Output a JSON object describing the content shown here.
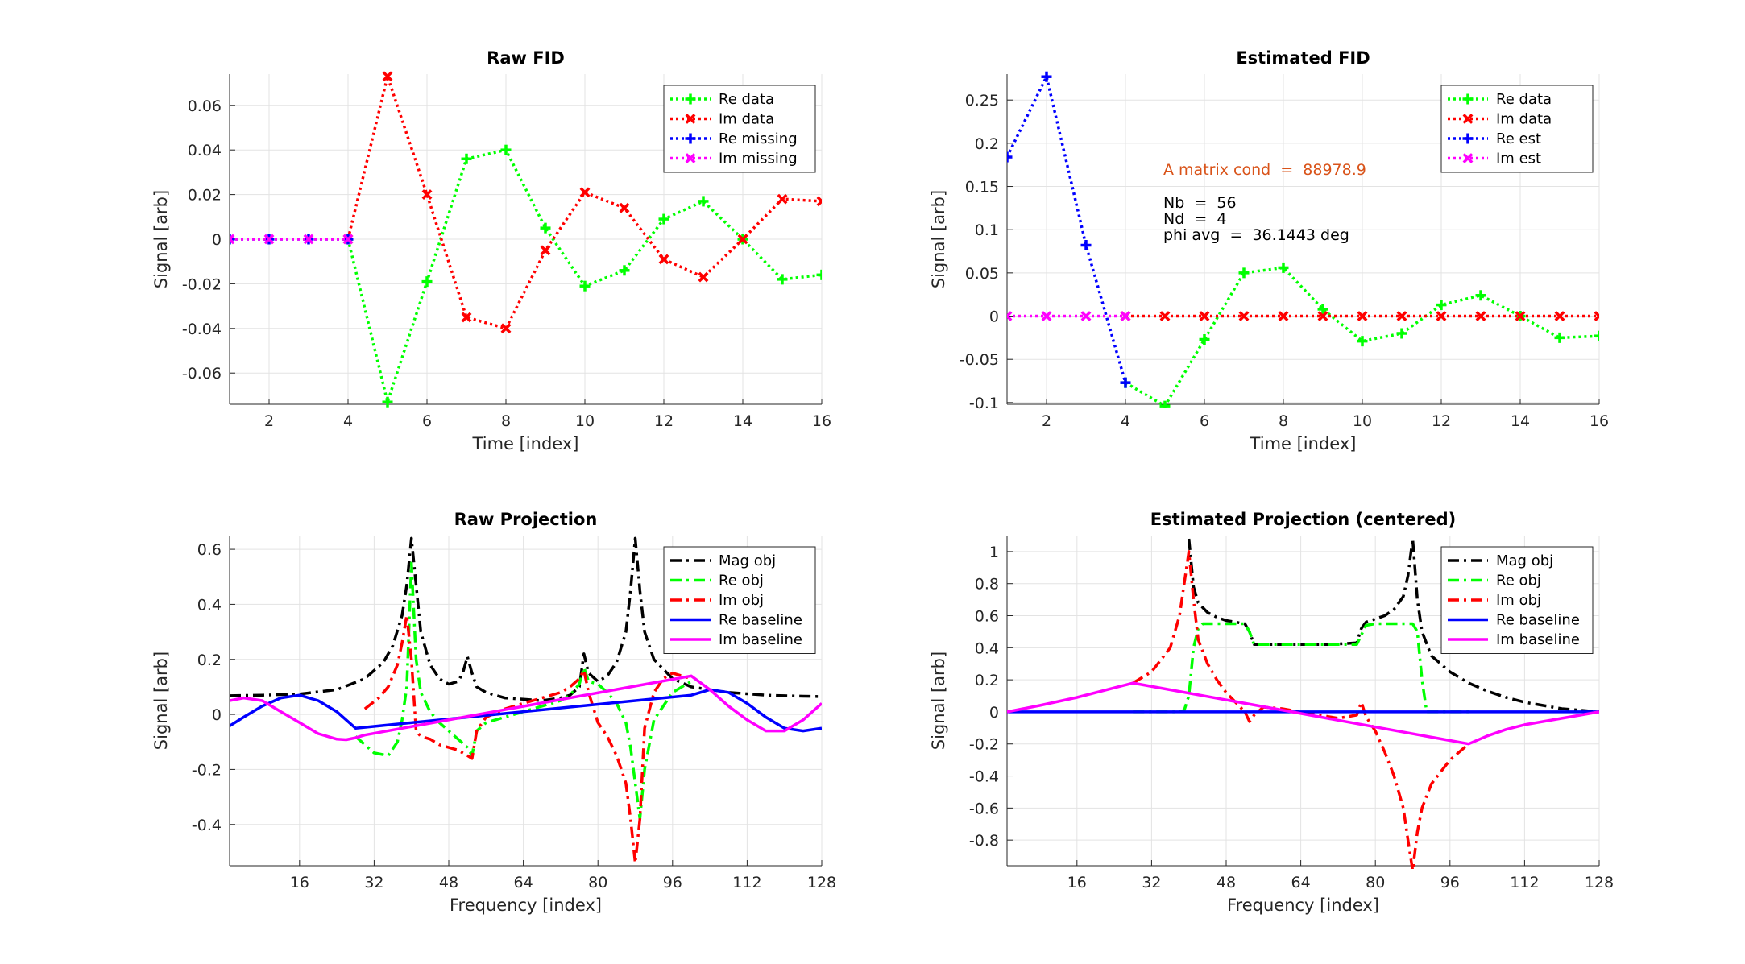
{
  "chart_data": [
    {
      "id": "raw-fid",
      "type": "line",
      "title": "Raw FID",
      "xlabel": "Time [index]",
      "ylabel": "Signal [arb]",
      "xlim": [
        1,
        16
      ],
      "ylim": [
        -0.074,
        0.074
      ],
      "xticks": [
        2,
        4,
        6,
        8,
        10,
        12,
        14,
        16
      ],
      "xtick_labels": [
        "2",
        "4",
        "6",
        "8",
        "10",
        "12",
        "14",
        "16"
      ],
      "yticks": [
        -0.06,
        -0.04,
        -0.02,
        0,
        0.02,
        0.04,
        0.06
      ],
      "ytick_labels": [
        "-0.06",
        "-0.04",
        "-0.02",
        "0",
        "0.02",
        "0.04",
        "0.06"
      ],
      "grid": true,
      "legend_position": "top-right",
      "series": [
        {
          "name": "Re data",
          "color": "#00ff00",
          "style": "dotted",
          "marker": "plus",
          "x": [
            4,
            5,
            6,
            7,
            8,
            9,
            10,
            11,
            12,
            13,
            14,
            15,
            16
          ],
          "y": [
            0,
            -0.073,
            -0.019,
            0.036,
            0.04,
            0.005,
            -0.021,
            -0.014,
            0.009,
            0.017,
            0,
            -0.018,
            -0.016
          ]
        },
        {
          "name": "Im data",
          "color": "#ff0000",
          "style": "dotted",
          "marker": "x",
          "x": [
            4,
            5,
            6,
            7,
            8,
            9,
            10,
            11,
            12,
            13,
            14,
            15,
            16
          ],
          "y": [
            0,
            0.073,
            0.02,
            -0.035,
            -0.04,
            -0.005,
            0.021,
            0.014,
            -0.009,
            -0.017,
            0,
            0.018,
            0.017
          ]
        },
        {
          "name": "Re missing",
          "color": "#0000ff",
          "style": "dotted",
          "marker": "plus",
          "x": [
            1,
            2,
            3,
            4
          ],
          "y": [
            0,
            0,
            0,
            0
          ]
        },
        {
          "name": "Im missing",
          "color": "#ff00ff",
          "style": "dotted",
          "marker": "x",
          "x": [
            1,
            2,
            3,
            4
          ],
          "y": [
            0,
            0,
            0,
            0
          ]
        }
      ]
    },
    {
      "id": "estimated-fid",
      "type": "line",
      "title": "Estimated FID",
      "xlabel": "Time [index]",
      "ylabel": "Signal [arb]",
      "xlim": [
        1,
        16
      ],
      "ylim": [
        -0.102,
        0.28
      ],
      "xticks": [
        2,
        4,
        6,
        8,
        10,
        12,
        14,
        16
      ],
      "xtick_labels": [
        "2",
        "4",
        "6",
        "8",
        "10",
        "12",
        "14",
        "16"
      ],
      "yticks": [
        -0.1,
        -0.05,
        0,
        0.05,
        0.1,
        0.15,
        0.2,
        0.25
      ],
      "ytick_labels": [
        "-0.1",
        "-0.05",
        "0",
        "0.05",
        "0.1",
        "0.15",
        "0.2",
        "0.25"
      ],
      "grid": true,
      "legend_position": "top-right",
      "annotations": [
        {
          "text": "A matrix cond  =  88978.9",
          "color": "#d95319"
        },
        {
          "text": "Nb  =  56",
          "color": "#000000"
        },
        {
          "text": "Nd  =  4",
          "color": "#000000"
        },
        {
          "text": "phi avg  =  36.1443 deg",
          "color": "#000000"
        }
      ],
      "series": [
        {
          "name": "Re data",
          "color": "#00ff00",
          "style": "dotted",
          "marker": "plus",
          "x": [
            4,
            5,
            6,
            7,
            8,
            9,
            10,
            11,
            12,
            13,
            14,
            15,
            16
          ],
          "y": [
            -0.077,
            -0.104,
            -0.027,
            0.05,
            0.056,
            0.008,
            -0.029,
            -0.02,
            0.013,
            0.024,
            0,
            -0.025,
            -0.023
          ]
        },
        {
          "name": "Im data",
          "color": "#ff0000",
          "style": "dotted",
          "marker": "x",
          "x": [
            4,
            5,
            6,
            7,
            8,
            9,
            10,
            11,
            12,
            13,
            14,
            15,
            16
          ],
          "y": [
            0,
            0,
            0,
            0,
            0,
            0,
            0,
            0,
            0,
            0,
            0,
            0,
            0
          ]
        },
        {
          "name": "Re est",
          "color": "#0000ff",
          "style": "dotted",
          "marker": "plus",
          "x": [
            1,
            2,
            3,
            4
          ],
          "y": [
            0.184,
            0.277,
            0.082,
            -0.077
          ]
        },
        {
          "name": "Im est",
          "color": "#ff00ff",
          "style": "dotted",
          "marker": "x",
          "x": [
            1,
            2,
            3,
            4
          ],
          "y": [
            0,
            0,
            0,
            0
          ]
        }
      ]
    },
    {
      "id": "raw-projection",
      "type": "line",
      "title": "Raw Projection",
      "xlabel": "Frequency [index]",
      "ylabel": "Signal [arb]",
      "xlim": [
        1,
        128
      ],
      "ylim": [
        -0.55,
        0.65
      ],
      "xticks": [
        16,
        32,
        48,
        64,
        80,
        96,
        112,
        128
      ],
      "xtick_labels": [
        "16",
        "32",
        "48",
        "64",
        "80",
        "96",
        "112",
        "128"
      ],
      "yticks": [
        -0.4,
        -0.2,
        0,
        0.2,
        0.4,
        0.6
      ],
      "ytick_labels": [
        "-0.4",
        "-0.2",
        "0",
        "0.2",
        "0.4",
        "0.6"
      ],
      "grid": true,
      "legend_position": "top-right",
      "series": [
        {
          "name": "Mag obj",
          "color": "#000000",
          "style": "dashdot",
          "x": [
            1,
            8,
            16,
            24,
            30,
            34,
            36,
            38,
            39,
            40,
            41,
            42,
            44,
            46,
            48,
            50,
            51,
            52,
            53,
            54,
            56,
            60,
            64,
            68,
            72,
            74,
            76,
            77,
            78,
            80,
            82,
            84,
            86,
            87,
            88,
            89,
            90,
            92,
            96,
            100,
            104,
            108,
            112,
            116,
            120,
            124,
            128
          ],
          "y": [
            0.068,
            0.07,
            0.074,
            0.09,
            0.13,
            0.19,
            0.25,
            0.36,
            0.47,
            0.64,
            0.47,
            0.3,
            0.18,
            0.13,
            0.11,
            0.12,
            0.15,
            0.21,
            0.15,
            0.1,
            0.08,
            0.06,
            0.055,
            0.05,
            0.06,
            0.07,
            0.1,
            0.22,
            0.15,
            0.12,
            0.14,
            0.19,
            0.3,
            0.45,
            0.64,
            0.45,
            0.3,
            0.2,
            0.13,
            0.1,
            0.09,
            0.08,
            0.075,
            0.07,
            0.068,
            0.066,
            0.065
          ]
        },
        {
          "name": "Re obj",
          "color": "#00ff00",
          "style": "dashdot",
          "x": [
            28,
            30,
            32,
            35,
            37,
            38,
            39,
            40,
            41,
            42,
            44,
            46,
            48,
            50,
            52,
            53,
            54,
            56,
            60,
            64,
            68,
            72,
            74,
            76,
            77,
            78,
            80,
            82,
            84,
            86,
            87,
            88,
            89,
            90,
            92,
            96,
            100
          ],
          "y": [
            -0.08,
            -0.11,
            -0.14,
            -0.15,
            -0.1,
            -0.02,
            0.1,
            0.55,
            0.2,
            0.08,
            0.01,
            -0.03,
            -0.06,
            -0.09,
            -0.12,
            -0.15,
            -0.06,
            -0.03,
            -0.01,
            0.01,
            0.03,
            0.05,
            0.07,
            0.11,
            0.17,
            0.12,
            0.11,
            0.08,
            0.04,
            -0.03,
            -0.12,
            -0.25,
            -0.38,
            -0.2,
            -0.02,
            0.08,
            0.12
          ]
        },
        {
          "name": "Im obj",
          "color": "#ff0000",
          "style": "dashdot",
          "x": [
            30,
            33,
            35,
            37,
            38,
            39,
            40,
            41,
            42,
            44,
            46,
            48,
            50,
            52,
            53,
            54,
            56,
            60,
            64,
            68,
            72,
            74,
            76,
            77,
            78,
            80,
            82,
            84,
            86,
            87,
            88,
            89,
            90,
            92,
            94,
            96,
            100
          ],
          "y": [
            0.02,
            0.06,
            0.1,
            0.18,
            0.26,
            0.36,
            0.2,
            -0.06,
            -0.08,
            -0.09,
            -0.11,
            -0.12,
            -0.13,
            -0.15,
            -0.16,
            -0.06,
            -0.01,
            0.02,
            0.04,
            0.06,
            0.08,
            0.1,
            0.13,
            0.16,
            0.08,
            -0.03,
            -0.08,
            -0.15,
            -0.25,
            -0.38,
            -0.54,
            -0.38,
            -0.05,
            0.08,
            0.13,
            0.15,
            0.13
          ]
        },
        {
          "name": "Re baseline",
          "color": "#0000ff",
          "style": "solid",
          "x": [
            1,
            4,
            8,
            12,
            16,
            20,
            24,
            28,
            100,
            104,
            108,
            112,
            116,
            120,
            124,
            128
          ],
          "y": [
            -0.042,
            -0.01,
            0.03,
            0.06,
            0.07,
            0.05,
            0.01,
            -0.05,
            0.07,
            0.09,
            0.08,
            0.04,
            -0.01,
            -0.05,
            -0.06,
            -0.05
          ]
        },
        {
          "name": "Im baseline",
          "color": "#ff00ff",
          "style": "solid",
          "x": [
            1,
            4,
            8,
            12,
            16,
            20,
            24,
            26,
            28,
            30,
            100,
            104,
            108,
            112,
            116,
            120,
            124,
            128
          ],
          "y": [
            0.05,
            0.06,
            0.05,
            0.01,
            -0.03,
            -0.07,
            -0.09,
            -0.092,
            -0.085,
            -0.075,
            0.14,
            0.09,
            0.03,
            -0.02,
            -0.06,
            -0.06,
            -0.02,
            0.04
          ]
        }
      ]
    },
    {
      "id": "estimated-projection",
      "type": "line",
      "title": "Estimated Projection (centered)",
      "xlabel": "Frequency [index]",
      "ylabel": "Signal [arb]",
      "xlim": [
        1,
        128
      ],
      "ylim": [
        -0.96,
        1.1
      ],
      "xticks": [
        16,
        32,
        48,
        64,
        80,
        96,
        112,
        128
      ],
      "xtick_labels": [
        "16",
        "32",
        "48",
        "64",
        "80",
        "96",
        "112",
        "128"
      ],
      "yticks": [
        -0.8,
        -0.6,
        -0.4,
        -0.2,
        0,
        0.2,
        0.4,
        0.6,
        0.8,
        1
      ],
      "ytick_labels": [
        "-0.8",
        "-0.6",
        "-0.4",
        "-0.2",
        "0",
        "0.2",
        "0.4",
        "0.6",
        "0.8",
        "1"
      ],
      "grid": true,
      "legend_position": "top-right",
      "series": [
        {
          "name": "Mag obj",
          "color": "#000000",
          "style": "dashdot",
          "x": [
            40,
            41,
            42,
            44,
            46,
            48,
            50,
            52,
            53,
            54,
            56,
            60,
            70,
            76,
            77,
            78,
            80,
            82,
            84,
            86,
            87,
            88,
            89,
            90,
            92,
            96,
            100,
            104,
            108,
            112,
            116,
            120,
            124,
            128
          ],
          "y": [
            1.08,
            0.78,
            0.68,
            0.62,
            0.59,
            0.57,
            0.56,
            0.55,
            0.5,
            0.42,
            0.42,
            0.42,
            0.42,
            0.43,
            0.52,
            0.56,
            0.58,
            0.6,
            0.64,
            0.72,
            0.85,
            1.08,
            0.7,
            0.5,
            0.35,
            0.25,
            0.18,
            0.13,
            0.09,
            0.06,
            0.04,
            0.02,
            0.01,
            0
          ]
        },
        {
          "name": "Re obj",
          "color": "#00ff00",
          "style": "dashdot",
          "x": [
            28,
            32,
            36,
            38,
            39,
            40,
            41,
            42,
            43,
            44,
            50,
            52,
            53,
            54,
            56,
            60,
            70,
            76,
            77,
            78,
            80,
            84,
            88,
            89,
            90,
            91,
            96,
            100
          ],
          "y": [
            0,
            0,
            0,
            0,
            0.01,
            0.1,
            0.4,
            0.52,
            0.55,
            0.55,
            0.55,
            0.55,
            0.5,
            0.42,
            0.42,
            0.42,
            0.42,
            0.42,
            0.48,
            0.54,
            0.55,
            0.55,
            0.55,
            0.5,
            0.2,
            0,
            0,
            0
          ]
        },
        {
          "name": "Im obj",
          "color": "#ff0000",
          "style": "dashdot",
          "x": [
            28,
            32,
            36,
            38,
            39,
            40,
            41,
            42,
            44,
            46,
            48,
            50,
            52,
            53,
            54,
            56,
            60,
            64,
            68,
            72,
            76,
            77,
            78,
            80,
            82,
            84,
            86,
            87,
            88,
            89,
            90,
            92,
            96,
            100
          ],
          "y": [
            0.18,
            0.25,
            0.4,
            0.6,
            0.8,
            1.0,
            0.7,
            0.45,
            0.3,
            0.2,
            0.12,
            0.06,
            0,
            -0.06,
            -0.02,
            0.03,
            0.02,
            0,
            -0.02,
            -0.04,
            -0.02,
            0.06,
            -0.03,
            -0.12,
            -0.25,
            -0.4,
            -0.6,
            -0.8,
            -0.99,
            -0.75,
            -0.6,
            -0.45,
            -0.3,
            -0.2
          ]
        },
        {
          "name": "Re baseline",
          "color": "#0000ff",
          "style": "solid",
          "x": [
            1,
            28,
            100,
            128
          ],
          "y": [
            0,
            0,
            0,
            0
          ]
        },
        {
          "name": "Im baseline",
          "color": "#ff00ff",
          "style": "solid",
          "x": [
            1,
            8,
            16,
            24,
            28,
            100,
            104,
            108,
            112,
            116,
            120,
            124,
            128
          ],
          "y": [
            0,
            0.04,
            0.09,
            0.15,
            0.18,
            -0.2,
            -0.15,
            -0.11,
            -0.08,
            -0.06,
            -0.04,
            -0.02,
            0
          ]
        }
      ]
    }
  ]
}
